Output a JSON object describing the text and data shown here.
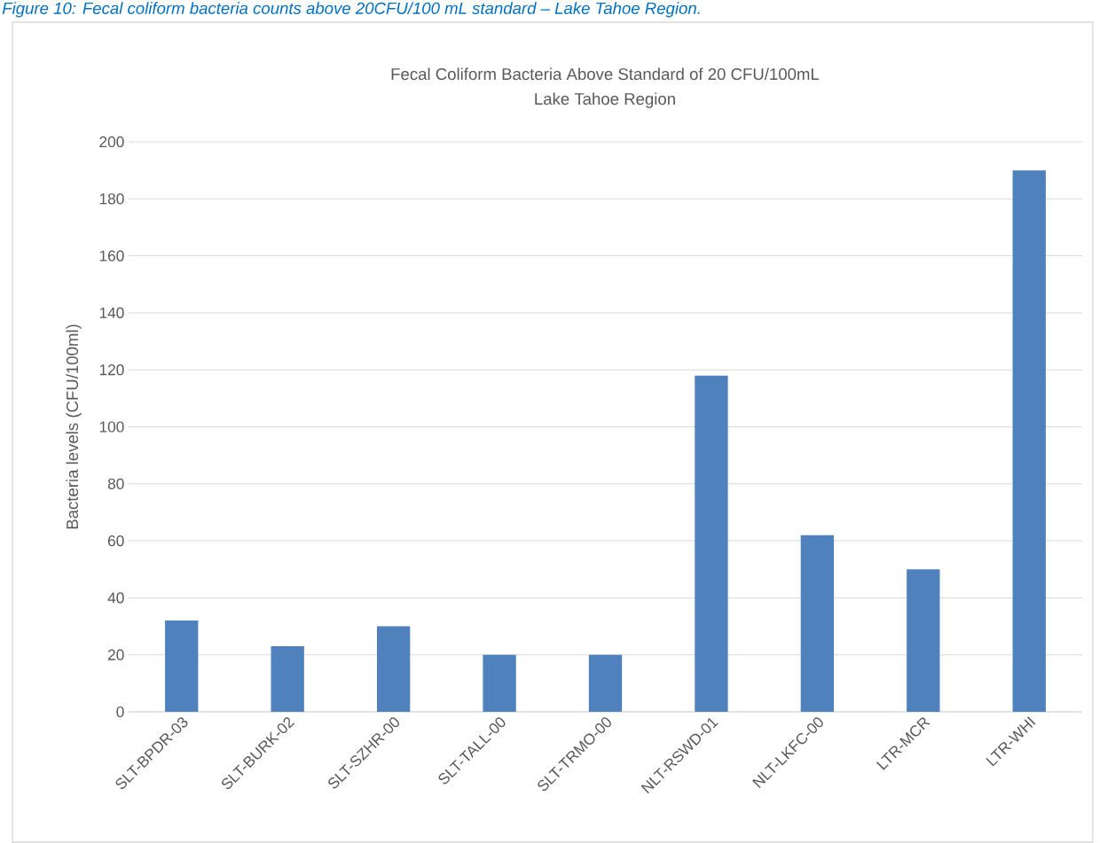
{
  "chart_data": {
    "type": "bar",
    "title": "Fecal Coliform Bacteria Above Standard of 20 CFU/100mL",
    "subtitle": "Lake Tahoe Region",
    "ylabel": "Bacteria levels (CFU/100ml)",
    "annotations": [
      "*Figure 10: Fecal coliform bacteria counts above 20CFU/100 mL standard – Lake Tahoe Region.*"
    ],
    "categories": [
      "SLT-BPDR-03",
      "SLT-BURK-02",
      "SLT-SZHR-00",
      "SLT-TALL-00",
      "SLT-TRMO-00",
      "NLT-RSWD-01",
      "NLT-LKFC-00",
      "LTR-MCR",
      "LTR-WHI"
    ],
    "values": [
      32,
      23,
      30,
      20,
      20,
      118,
      62,
      50,
      190
    ],
    "color": "#4f81bd",
    "ylim": [
      0,
      200
    ],
    "yticks": [
      0,
      20,
      40,
      60,
      80,
      100,
      120,
      140,
      160,
      180,
      200
    ],
    "grid": "y"
  }
}
